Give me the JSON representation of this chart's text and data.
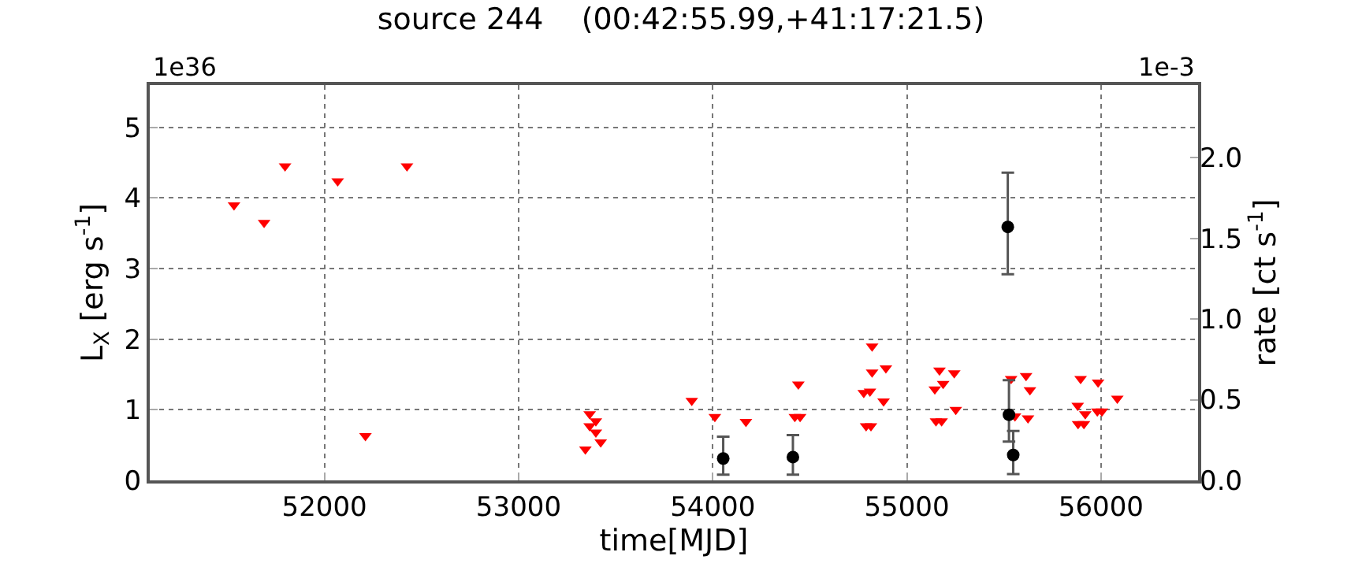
{
  "chart_data": {
    "type": "scatter",
    "title": "source 244    (00:42:55.99,+41:17:21.5)",
    "xlabel": "time[MJD]",
    "ylabel": "L$_{X}$ [erg s$^{-1}$]",
    "y2label": "rate [ct s$^{-1}$]",
    "annotations": [
      "1e36",
      "1e-3"
    ],
    "xlim": [
      51100,
      56500
    ],
    "xticks": [
      52000,
      53000,
      54000,
      55000,
      56000
    ],
    "ylim": [
      0,
      5.6
    ],
    "yticks": [
      0,
      1,
      2,
      3,
      4,
      5
    ],
    "y2lim": [
      0,
      2.45
    ],
    "y2ticks": [
      {
        "value": 0,
        "label": "0.0"
      },
      {
        "value": 0.5,
        "label": "0.5"
      },
      {
        "value": 1,
        "label": "1.0"
      },
      {
        "value": 1.5,
        "label": "1.5"
      },
      {
        "value": 2,
        "label": "2.0"
      }
    ],
    "grid": true,
    "series": [
      {
        "color": "#ff0000",
        "marker": "triangle",
        "x": [
          51534,
          51689,
          51797,
          52068,
          52211,
          52425,
          53366,
          53398,
          53366,
          53398,
          53423,
          53344,
          53892,
          54011,
          54171,
          54441,
          54423,
          54450,
          54821,
          54821,
          54892,
          54778,
          54810,
          54880,
          54790,
          54815,
          55168,
          55244,
          55144,
          55187,
          55252,
          55150,
          55179,
          55537,
          55614,
          55634,
          55557,
          55624,
          55895,
          55985,
          55880,
          55919,
          55882,
          55912,
          55981,
          56005,
          56084
        ],
        "values": [
          3.9,
          3.65,
          4.45,
          4.24,
          0.63,
          4.45,
          0.94,
          0.84,
          0.77,
          0.68,
          0.54,
          0.44,
          1.13,
          0.9,
          0.83,
          1.36,
          0.9,
          0.9,
          1.9,
          1.53,
          1.59,
          1.24,
          1.26,
          1.12,
          0.77,
          0.77,
          1.56,
          1.52,
          1.29,
          1.37,
          1.0,
          0.84,
          0.84,
          1.44,
          1.48,
          1.28,
          0.91,
          0.88,
          1.44,
          1.39,
          1.06,
          0.94,
          0.8,
          0.8,
          0.98,
          0.98,
          1.16
        ]
      },
      {
        "color": "#000000",
        "marker": "circle",
        "x": [
          54054,
          54413,
          55520,
          55526,
          55548
        ],
        "values": [
          0.31,
          0.33,
          3.59,
          0.93,
          0.36
        ],
        "errors": [
          [
            0.08,
            0.62
          ],
          [
            0.08,
            0.64
          ],
          [
            2.92,
            4.36
          ],
          [
            0.55,
            1.42
          ],
          [
            0.09,
            0.7
          ]
        ]
      }
    ]
  }
}
